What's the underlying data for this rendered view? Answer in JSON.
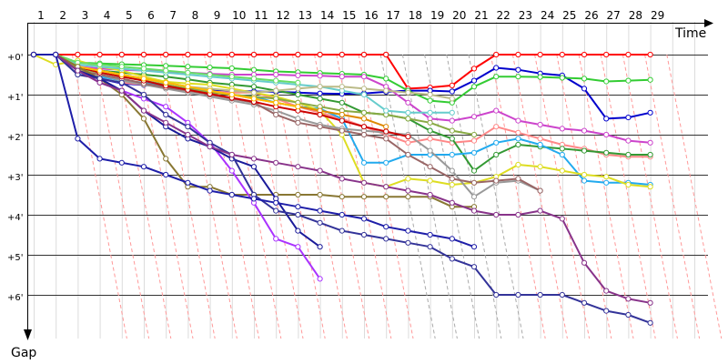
{
  "chart_data": {
    "type": "line",
    "xlabel": "Time",
    "ylabel": "Gap",
    "x_ticks": [
      1,
      2,
      3,
      4,
      5,
      6,
      7,
      8,
      9,
      10,
      11,
      12,
      13,
      14,
      15,
      16,
      17,
      18,
      19,
      20,
      21,
      22,
      23,
      24,
      25,
      26,
      27,
      28,
      29
    ],
    "y_ticks": [
      "+0'",
      "+1'",
      "+2'",
      "+3'",
      "+4'",
      "+5'",
      "+6'"
    ],
    "ylim": [
      0,
      7
    ],
    "grid": true,
    "series": [
      {
        "color": "#404040",
        "start": 1,
        "values": [
          0.0,
          0.0,
          0.0,
          0.0,
          0.0,
          0.0,
          0.0,
          0.0,
          0.0,
          0.0,
          0.0,
          0.0,
          0.0,
          0.0,
          0.0,
          0.0,
          0.0
        ]
      },
      {
        "color": "#ff0000",
        "start": 1,
        "values": [
          0.0,
          0.0,
          0.0,
          0.0,
          0.0,
          0.0,
          0.0,
          0.0,
          0.0,
          0.0,
          0.0,
          0.0,
          0.0,
          0.0,
          0.0,
          0.0,
          0.0,
          0.85,
          0.82,
          0.77,
          0.35,
          0.0,
          0.0,
          0.0,
          0.0,
          0.0,
          0.0,
          0.0,
          0.0
        ]
      },
      {
        "color": "#0000cc",
        "start": 1,
        "values": [
          0.0,
          0.0,
          0.4,
          0.6,
          0.72,
          0.76,
          0.8,
          0.85,
          0.88,
          0.9,
          0.92,
          0.93,
          0.95,
          0.97,
          0.98,
          0.97,
          0.93,
          0.9,
          0.9,
          0.92,
          0.65,
          0.33,
          0.38,
          0.47,
          0.52,
          0.85,
          1.6,
          1.57,
          1.45
        ]
      },
      {
        "color": "#33cc33",
        "start": 1,
        "values": [
          0.0,
          0.0,
          0.2,
          0.22,
          0.24,
          0.26,
          0.28,
          0.3,
          0.32,
          0.34,
          0.38,
          0.42,
          0.44,
          0.46,
          0.48,
          0.5,
          0.6,
          0.9,
          1.15,
          1.2,
          0.8,
          0.55,
          0.55,
          0.56,
          0.58,
          0.6,
          0.67,
          0.65,
          0.63
        ]
      },
      {
        "color": "#cc44cc",
        "start": 1,
        "values": [
          0.0,
          0.0,
          0.3,
          0.35,
          0.38,
          0.4,
          0.42,
          0.45,
          0.48,
          0.5,
          0.5,
          0.5,
          0.52,
          0.53,
          0.55,
          0.55,
          0.8,
          1.2,
          1.6,
          1.65,
          1.55,
          1.4,
          1.65,
          1.75,
          1.85,
          1.9,
          2.0,
          2.15,
          2.2
        ]
      },
      {
        "color": "#ff8888",
        "start": 1,
        "values": [
          0.0,
          0.0,
          0.5,
          0.6,
          0.7,
          0.75,
          0.8,
          0.88,
          0.92,
          0.95,
          0.95,
          1.1,
          1.3,
          1.45,
          1.6,
          1.8,
          2.0,
          2.2,
          2.1,
          2.2,
          2.15,
          1.8,
          1.95,
          2.1,
          2.25,
          2.35,
          2.5,
          2.55,
          2.55
        ]
      },
      {
        "color": "#339933",
        "start": 1,
        "values": [
          0.0,
          0.0,
          0.35,
          0.4,
          0.45,
          0.5,
          0.55,
          0.62,
          0.7,
          0.75,
          0.8,
          0.9,
          1.0,
          1.1,
          1.2,
          1.45,
          1.5,
          1.6,
          1.9,
          2.1,
          2.9,
          2.5,
          2.25,
          2.3,
          2.35,
          2.4,
          2.45,
          2.5,
          2.5
        ]
      },
      {
        "color": "#22aaee",
        "start": 1,
        "values": [
          0.0,
          0.0,
          0.5,
          0.55,
          0.65,
          0.7,
          0.78,
          0.85,
          0.92,
          1.0,
          1.05,
          1.2,
          1.3,
          1.35,
          1.6,
          2.7,
          2.7,
          2.5,
          2.5,
          2.5,
          2.45,
          2.2,
          2.1,
          2.25,
          2.5,
          3.15,
          3.2,
          3.2,
          3.25
        ]
      },
      {
        "color": "#dddd22",
        "start": 1,
        "values": [
          0.0,
          0.25,
          0.15,
          0.3,
          0.4,
          0.55,
          0.68,
          0.72,
          0.75,
          0.85,
          0.95,
          1.05,
          1.2,
          1.4,
          2.0,
          3.2,
          3.3,
          3.1,
          3.15,
          3.25,
          3.2,
          3.05,
          2.75,
          2.8,
          2.9,
          3.0,
          3.05,
          3.25,
          3.3
        ]
      },
      {
        "color": "#999999",
        "start": 1,
        "values": [
          0.0,
          0.0,
          0.4,
          0.5,
          0.65,
          0.75,
          0.85,
          0.95,
          1.05,
          1.15,
          1.25,
          1.4,
          1.6,
          1.75,
          1.85,
          1.9,
          1.95,
          2.0,
          2.4,
          2.9,
          3.55,
          3.2,
          3.15,
          3.4
        ]
      },
      {
        "color": "#88aa44",
        "start": 1,
        "values": [
          0.0,
          0.0,
          0.35,
          0.45,
          0.55,
          0.65,
          0.75,
          0.85,
          0.95,
          1.0,
          1.05,
          1.1,
          1.2,
          1.3,
          1.4,
          1.45,
          1.5,
          1.6,
          1.7,
          1.9,
          2.0
        ]
      },
      {
        "color": "#996666",
        "start": 1,
        "values": [
          0.0,
          0.0,
          0.4,
          0.5,
          0.6,
          0.72,
          0.82,
          0.9,
          1.0,
          1.1,
          1.2,
          1.5,
          1.7,
          1.8,
          1.9,
          2.0,
          2.1,
          2.5,
          2.8,
          3.1,
          3.2,
          3.15,
          3.1,
          3.4
        ]
      },
      {
        "color": "#66cccc",
        "start": 1,
        "values": [
          0.0,
          0.0,
          0.25,
          0.3,
          0.35,
          0.4,
          0.45,
          0.5,
          0.55,
          0.6,
          0.65,
          0.7,
          0.75,
          0.8,
          0.9,
          1.0,
          1.4,
          1.45,
          1.45,
          1.45
        ]
      },
      {
        "color": "#dd8800",
        "start": 1,
        "values": [
          0.0,
          0.0,
          0.3,
          0.4,
          0.5,
          0.6,
          0.7,
          0.8,
          0.9,
          1.0,
          1.1,
          1.2,
          1.3,
          1.4,
          1.5,
          1.6,
          1.8
        ]
      },
      {
        "color": "#cc0000",
        "start": 1,
        "values": [
          0.0,
          0.0,
          0.3,
          0.45,
          0.55,
          0.65,
          0.78,
          0.88,
          0.98,
          1.08,
          1.18,
          1.3,
          1.4,
          1.5,
          1.65,
          1.8,
          1.92,
          2.05
        ]
      },
      {
        "color": "#bbbb88",
        "start": 1,
        "values": [
          0.0,
          0.0,
          0.3,
          0.4,
          0.5,
          0.6,
          0.7,
          0.8,
          0.85,
          0.9,
          0.95,
          0.9,
          0.85,
          0.8,
          0.8,
          0.85,
          0.9,
          0.95,
          1.0,
          1.1
        ]
      },
      {
        "color": "#66dd66",
        "start": 1,
        "values": [
          0.0,
          0.0,
          0.2,
          0.25,
          0.3,
          0.35,
          0.4,
          0.45,
          0.5,
          0.55,
          0.6,
          0.65,
          0.7
        ]
      },
      {
        "color": "#ffbb00",
        "start": 1,
        "values": [
          0.0,
          0.0,
          0.3,
          0.4,
          0.5,
          0.6,
          0.7,
          0.8,
          0.9,
          1.0,
          1.1,
          1.2,
          1.3
        ]
      },
      {
        "color": "#887733",
        "start": 1,
        "values": [
          0.0,
          0.0,
          0.3,
          0.6,
          1.0,
          1.6,
          2.6,
          3.3,
          3.3,
          3.5,
          3.5,
          3.5,
          3.5,
          3.5,
          3.55,
          3.55,
          3.55,
          3.55,
          3.55,
          3.8,
          3.8
        ]
      },
      {
        "color": "#aa33ff",
        "start": 1,
        "values": [
          0.0,
          0.0,
          0.4,
          0.7,
          0.9,
          1.1,
          1.3,
          1.7,
          2.2,
          2.9,
          3.7,
          4.6,
          4.8,
          5.6
        ]
      },
      {
        "color": "#1a1a99",
        "start": 1,
        "values": [
          0.0,
          0.0,
          0.4,
          0.6,
          0.9,
          1.4,
          1.8,
          2.1,
          2.3,
          2.6,
          2.8,
          3.6,
          4.4,
          4.8
        ]
      },
      {
        "color": "#333399",
        "start": 1,
        "values": [
          0.0,
          0.0,
          0.5,
          0.6,
          0.7,
          1.0,
          1.5,
          1.8,
          2.2,
          2.5,
          3.5,
          3.9,
          4.0,
          4.2,
          4.4,
          4.5,
          4.6,
          4.7,
          4.8,
          5.1,
          5.3,
          6.0,
          6.0,
          6.0,
          6.0,
          6.2,
          6.4,
          6.5,
          6.7
        ]
      },
      {
        "color": "#88338a",
        "start": 1,
        "values": [
          0.0,
          0.0,
          0.4,
          0.7,
          0.9,
          1.4,
          1.7,
          2.0,
          2.3,
          2.5,
          2.6,
          2.7,
          2.8,
          2.9,
          3.1,
          3.2,
          3.3,
          3.4,
          3.5,
          3.7,
          3.9,
          4.0,
          4.0,
          3.9,
          4.1,
          5.2,
          5.9,
          6.1,
          6.2
        ]
      },
      {
        "color": "#1e1ea8",
        "start": 1,
        "values": [
          0.0,
          0.0,
          2.1,
          2.6,
          2.7,
          2.8,
          3.0,
          3.2,
          3.4,
          3.5,
          3.6,
          3.7,
          3.8,
          3.9,
          4.0,
          4.1,
          4.3,
          4.4,
          4.5,
          4.6,
          4.8
        ]
      }
    ],
    "diag_color": "#ff9999",
    "diag_gray": "#aaaaaa"
  }
}
